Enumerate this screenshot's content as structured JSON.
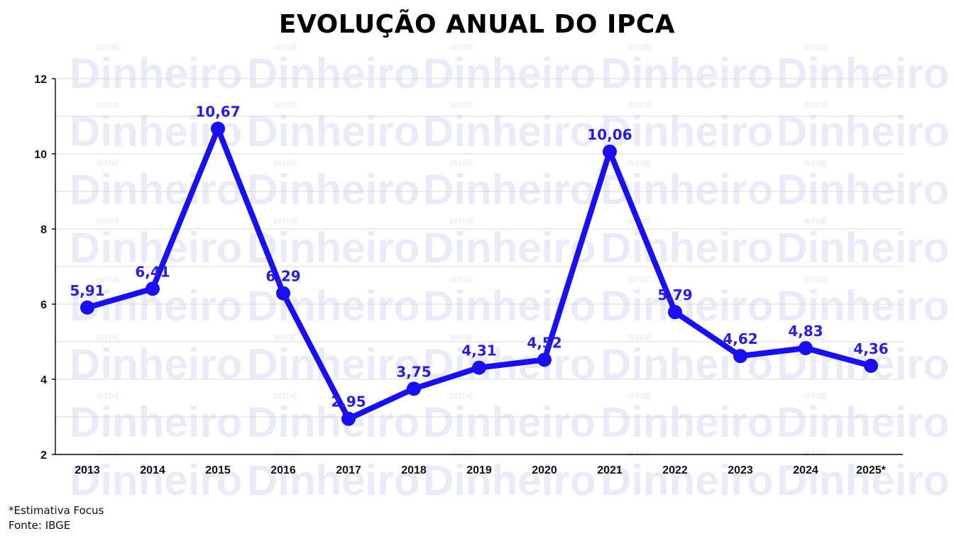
{
  "chart_data": {
    "type": "line",
    "title": "EVOLUÇÃO ANUAL DO IPCA",
    "categories": [
      "2013",
      "2014",
      "2015",
      "2016",
      "2017",
      "2018",
      "2019",
      "2020",
      "2021",
      "2022",
      "2023",
      "2024",
      "2025*"
    ],
    "series": [
      {
        "values": [
          5.91,
          6.41,
          10.67,
          6.29,
          2.95,
          3.75,
          4.31,
          4.52,
          10.06,
          5.79,
          4.62,
          4.83,
          4.36
        ],
        "labels": [
          "5,91",
          "6,41",
          "10,67",
          "6,29",
          "2,95",
          "3,75",
          "4,31",
          "4,52",
          "10,06",
          "5,79",
          "4,62",
          "4,83",
          "4,36"
        ],
        "color": "#1a0ff0"
      }
    ],
    "ylim": [
      2,
      12
    ],
    "yticks": [
      "2",
      "4",
      "6",
      "8",
      "10",
      "12"
    ],
    "grid": true,
    "xlabel": "",
    "ylabel": ""
  },
  "watermark": {
    "brand": "Dinheiro",
    "small": "ISTOÉ"
  },
  "notes": {
    "line1": "*Estimativa Focus",
    "line2": "Fonte: IBGE"
  }
}
